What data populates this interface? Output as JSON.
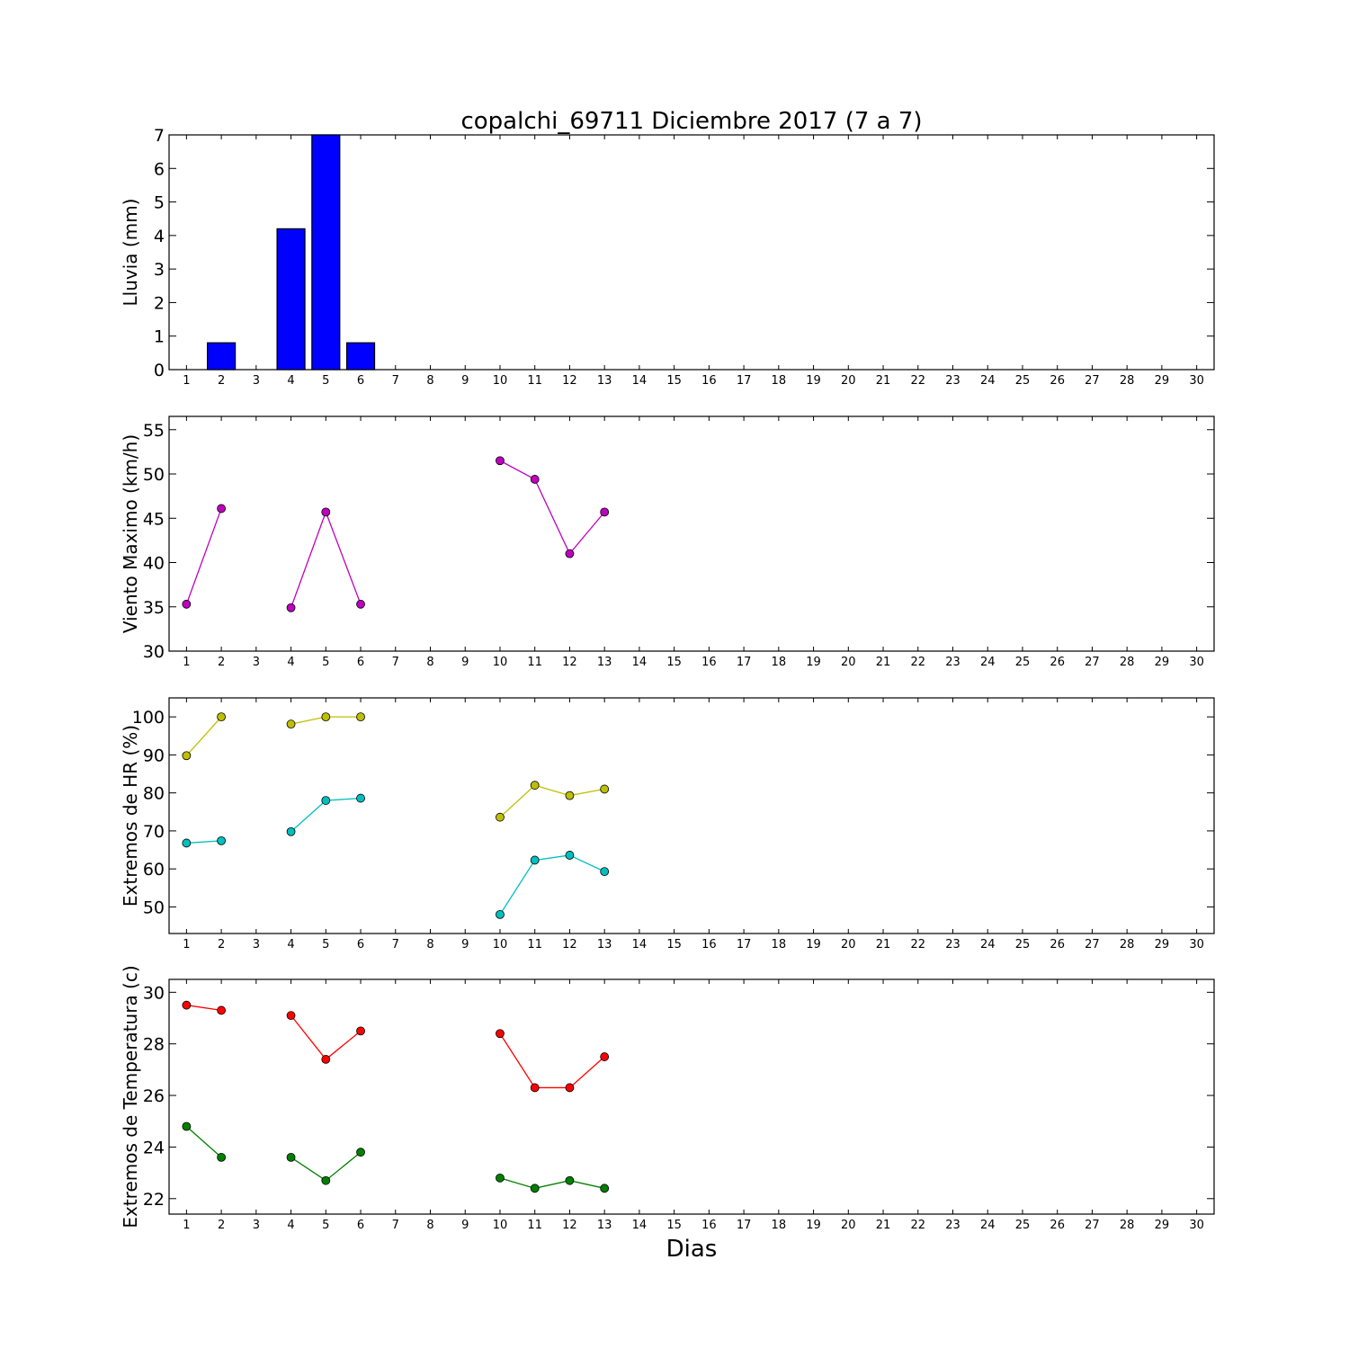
{
  "figure": {
    "title": "copalchi_69711 Diciembre 2017  (7 a 7)",
    "xlabel": "Dias"
  },
  "chart_data": [
    {
      "type": "bar",
      "ylabel": "Lluvia (mm)",
      "x": [
        1,
        2,
        3,
        4,
        5,
        6,
        7,
        8,
        9,
        10,
        11,
        12,
        13,
        14,
        15,
        16,
        17,
        18,
        19,
        20,
        21,
        22,
        23,
        24,
        25,
        26,
        27,
        28,
        29,
        30
      ],
      "x_ticks": [
        "1",
        "2",
        "3",
        "4",
        "5",
        "6",
        "7",
        "8",
        "9",
        "10",
        "11",
        "12",
        "13",
        "14",
        "15",
        "16",
        "17",
        "18",
        "19",
        "20",
        "21",
        "22",
        "23",
        "24",
        "25",
        "26",
        "27",
        "28",
        "29",
        "30"
      ],
      "xlim": [
        0.5,
        30.5
      ],
      "ylim": [
        0,
        7
      ],
      "y_ticks": [
        0,
        1,
        2,
        3,
        4,
        5,
        6,
        7
      ],
      "series": [
        {
          "color": "#0000ff",
          "values": [
            0,
            0.8,
            null,
            4.2,
            7.0,
            0.8,
            null,
            null,
            null,
            0,
            0,
            0,
            0,
            null,
            null,
            null,
            null,
            null,
            null,
            null,
            null,
            null,
            null,
            null,
            null,
            null,
            null,
            null,
            null,
            null
          ]
        }
      ]
    },
    {
      "type": "line",
      "ylabel": "Viento Maximo (km/h)",
      "xlim": [
        0.5,
        30.5
      ],
      "ylim": [
        30,
        56.5
      ],
      "y_ticks": [
        30,
        35,
        40,
        45,
        50,
        55
      ],
      "x_ticks": [
        "1",
        "2",
        "3",
        "4",
        "5",
        "6",
        "7",
        "8",
        "9",
        "10",
        "11",
        "12",
        "13",
        "14",
        "15",
        "16",
        "17",
        "18",
        "19",
        "20",
        "21",
        "22",
        "23",
        "24",
        "25",
        "26",
        "27",
        "28",
        "29",
        "30"
      ],
      "series": [
        {
          "color": "#bf00bf",
          "segments": [
            [
              [
                1,
                35.3
              ],
              [
                2,
                46.1
              ]
            ],
            [
              [
                4,
                34.9
              ],
              [
                5,
                45.7
              ],
              [
                6,
                35.3
              ]
            ],
            [
              [
                10,
                51.5
              ],
              [
                11,
                49.4
              ],
              [
                12,
                41.0
              ],
              [
                13,
                45.7
              ]
            ]
          ]
        }
      ]
    },
    {
      "type": "line",
      "ylabel": "Extremos de HR (%)",
      "xlim": [
        0.5,
        30.5
      ],
      "ylim": [
        43,
        105
      ],
      "y_ticks": [
        50,
        60,
        70,
        80,
        90,
        100
      ],
      "x_ticks": [
        "1",
        "2",
        "3",
        "4",
        "5",
        "6",
        "7",
        "8",
        "9",
        "10",
        "11",
        "12",
        "13",
        "14",
        "15",
        "16",
        "17",
        "18",
        "19",
        "20",
        "21",
        "22",
        "23",
        "24",
        "25",
        "26",
        "27",
        "28",
        "29",
        "30"
      ],
      "series": [
        {
          "color": "#bfbf00",
          "segments": [
            [
              [
                1,
                89.8
              ],
              [
                2,
                100
              ]
            ],
            [
              [
                4,
                98.1
              ],
              [
                5,
                100
              ],
              [
                6,
                100
              ]
            ],
            [
              [
                10,
                73.6
              ],
              [
                11,
                82.0
              ],
              [
                12,
                79.3
              ],
              [
                13,
                81.0
              ]
            ]
          ]
        },
        {
          "color": "#00bfbf",
          "segments": [
            [
              [
                1,
                66.8
              ],
              [
                2,
                67.4
              ]
            ],
            [
              [
                4,
                69.8
              ],
              [
                5,
                78.0
              ],
              [
                6,
                78.6
              ]
            ],
            [
              [
                10,
                48.0
              ],
              [
                11,
                62.3
              ],
              [
                12,
                63.6
              ],
              [
                13,
                59.3
              ]
            ]
          ]
        }
      ]
    },
    {
      "type": "line",
      "ylabel": "Extremos de Temperatura (c)",
      "xlim": [
        0.5,
        30.5
      ],
      "ylim": [
        21.4,
        30.5
      ],
      "y_ticks": [
        22,
        24,
        26,
        28,
        30
      ],
      "x_ticks": [
        "1",
        "2",
        "3",
        "4",
        "5",
        "6",
        "7",
        "8",
        "9",
        "10",
        "11",
        "12",
        "13",
        "14",
        "15",
        "16",
        "17",
        "18",
        "19",
        "20",
        "21",
        "22",
        "23",
        "24",
        "25",
        "26",
        "27",
        "28",
        "29",
        "30"
      ],
      "series": [
        {
          "color": "#ff0000",
          "segments": [
            [
              [
                1,
                29.5
              ],
              [
                2,
                29.3
              ]
            ],
            [
              [
                4,
                29.1
              ],
              [
                5,
                27.4
              ],
              [
                6,
                28.5
              ]
            ],
            [
              [
                10,
                28.4
              ],
              [
                11,
                26.3
              ],
              [
                12,
                26.3
              ],
              [
                13,
                27.5
              ]
            ]
          ]
        },
        {
          "color": "#008000",
          "segments": [
            [
              [
                1,
                24.8
              ],
              [
                2,
                23.6
              ]
            ],
            [
              [
                4,
                23.6
              ],
              [
                5,
                22.7
              ],
              [
                6,
                23.8
              ]
            ],
            [
              [
                10,
                22.8
              ],
              [
                11,
                22.4
              ],
              [
                12,
                22.7
              ],
              [
                13,
                22.4
              ]
            ]
          ]
        }
      ]
    }
  ]
}
